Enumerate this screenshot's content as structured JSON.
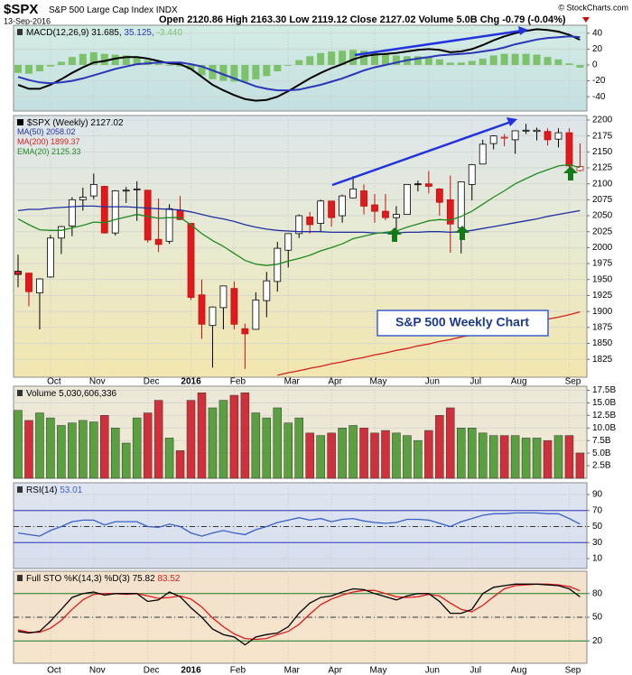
{
  "header": {
    "symbol": "$SPX",
    "name": "S&P 500 Large Cap Index",
    "exchange": "INDX",
    "date": "13-Sep-2016",
    "source": "© StockCharts.com",
    "quote": [
      {
        "label": "Open",
        "value": "2120.86"
      },
      {
        "label": "High",
        "value": "2163.30"
      },
      {
        "label": "Low",
        "value": "2119.12"
      },
      {
        "label": "Close",
        "value": "2127.02"
      },
      {
        "label": "Volume",
        "value": "5.0B"
      },
      {
        "label": "Chg",
        "value": "-0.79 (-0.04%)"
      }
    ]
  },
  "chart_data": [
    {
      "type": "line",
      "title": "MACD(12,26,9)",
      "ylim": [
        -58,
        50
      ],
      "yticks": [
        40,
        20,
        0,
        -20,
        -40
      ],
      "grid": true,
      "series": [
        {
          "type": "bar",
          "legend_value": "-3.440",
          "color": "#7cc26a",
          "values": [
            -10,
            -11,
            -8,
            -2,
            4,
            10,
            14,
            16,
            14,
            13,
            12,
            9,
            6,
            2,
            -1,
            -2,
            -6,
            -13,
            -18,
            -20,
            -21,
            -21,
            -18,
            -14,
            -8,
            -1,
            6,
            11,
            15,
            17,
            18,
            19,
            18,
            16,
            14,
            12,
            11,
            11,
            10,
            7,
            3,
            3,
            5,
            8,
            12,
            14,
            14,
            14,
            13,
            10,
            7,
            2,
            -3.44
          ]
        },
        {
          "type": "line",
          "legend_value": "31.685,",
          "color": "#000000",
          "values": [
            -25,
            -30,
            -30,
            -25,
            -18,
            -10,
            -3,
            3,
            5,
            8,
            10,
            10,
            8,
            5,
            2,
            1,
            -5,
            -15,
            -25,
            -32,
            -38,
            -43,
            -45,
            -44,
            -40,
            -33,
            -25,
            -17,
            -10,
            -4,
            1,
            7,
            11,
            13,
            14,
            15,
            17,
            19,
            20,
            19,
            16,
            17,
            20,
            25,
            31,
            36,
            40,
            43,
            45,
            44,
            42,
            38,
            31.685
          ]
        },
        {
          "type": "line",
          "legend_value": "35.125,",
          "color": "#2a35b8",
          "values": [
            -15,
            -19,
            -22,
            -23,
            -22,
            -20,
            -17,
            -13,
            -9,
            -5,
            -2,
            1,
            2,
            3,
            3,
            3,
            1,
            -2,
            -7,
            -12,
            -17,
            -22,
            -27,
            -30,
            -32,
            -32,
            -31,
            -28,
            -25,
            -21,
            -17,
            -12,
            -7,
            -3,
            0,
            3,
            6,
            8,
            10,
            12,
            13,
            14,
            15,
            17,
            19,
            22,
            26,
            29,
            32,
            34,
            35,
            36,
            35.125
          ]
        }
      ]
    },
    {
      "type": "candlestick",
      "title": "$SPX (Weekly)",
      "last": "2127.02",
      "annotation": "S&P 500 Weekly Chart",
      "categories": [
        null,
        null,
        null,
        "Oct",
        null,
        null,
        null,
        "Nov",
        null,
        null,
        null,
        null,
        "Dec",
        null,
        null,
        null,
        "2016",
        null,
        null,
        null,
        "Feb",
        null,
        null,
        null,
        null,
        "Mar",
        null,
        null,
        null,
        "Apr",
        null,
        null,
        null,
        "May",
        null,
        null,
        null,
        null,
        "Jun",
        null,
        null,
        null,
        "Jul",
        null,
        null,
        null,
        "Aug",
        null,
        null,
        null,
        null,
        "Sep",
        null
      ],
      "open": [
        1963,
        1960,
        1929,
        1954,
        2015,
        2034,
        2075,
        2081,
        2096,
        2023,
        2090,
        2091,
        2090,
        2013,
        2010,
        2058,
        2038,
        1926,
        1878,
        1906,
        1936,
        1873,
        1872,
        1917,
        1947,
        1996,
        2022,
        2048,
        2038,
        2073,
        2050,
        2078,
        2089,
        2067,
        2057,
        2047,
        2052,
        2100,
        2100,
        2092,
        2075,
        2031,
        2099,
        2131,
        2163,
        2173,
        2169,
        2183,
        2182,
        2182,
        2170,
        2180,
        2120.86
      ],
      "high": [
        1989,
        1961,
        1952,
        2020,
        2034,
        2079,
        2094,
        2116,
        2097,
        2090,
        2095,
        2104,
        2090,
        2077,
        2068,
        2081,
        2038,
        1950,
        1908,
        1940,
        1947,
        1881,
        1930,
        1962,
        2009,
        2022,
        2052,
        2056,
        2075,
        2073,
        2083,
        2112,
        2099,
        2084,
        2084,
        2065,
        2099,
        2105,
        2120,
        2093,
        2113,
        2103,
        2131,
        2169,
        2176,
        2178,
        2183,
        2194,
        2188,
        2187,
        2187,
        2187,
        2163.3
      ],
      "low": [
        1938,
        1908,
        1872,
        1953,
        1990,
        2018,
        2058,
        2076,
        2022,
        2019,
        2070,
        2042,
        2008,
        1993,
        2006,
        2043,
        1918,
        1857,
        1812,
        1872,
        1872,
        1810,
        1872,
        1891,
        1931,
        1969,
        2015,
        2022,
        2024,
        2033,
        2039,
        2077,
        2052,
        2039,
        2043,
        2025,
        2052,
        2088,
        2085,
        2050,
        1992,
        1991,
        2074,
        2131,
        2154,
        2159,
        2147,
        2178,
        2168,
        2160,
        2157,
        2119,
        2119.12
      ],
      "close": [
        1958,
        1931,
        1951,
        2015,
        2033,
        2075,
        2079,
        2099,
        2023,
        2089,
        2090,
        2092,
        2012,
        2005,
        2061,
        2044,
        1922,
        1880,
        1907,
        1940,
        1880,
        1865,
        1918,
        1948,
        1999,
        2022,
        2050,
        2036,
        2073,
        2047,
        2081,
        2092,
        2065,
        2057,
        2047,
        2052,
        2099,
        2099,
        2096,
        2071,
        2037,
        2103,
        2130,
        2162,
        2175,
        2173,
        2183,
        2184,
        2184,
        2169,
        2180,
        2128,
        2127.02
      ],
      "up_color": "#ffffff",
      "down_color": "#e0191c",
      "ylim": [
        1797,
        2207
      ],
      "yticks": [
        1825,
        1850,
        1875,
        1900,
        1925,
        1950,
        1975,
        2000,
        2025,
        2050,
        2075,
        2100,
        2125,
        2150,
        2175,
        2200
      ],
      "grid": true,
      "series": [
        {
          "type": "line",
          "name": "MA(50)",
          "legend_value": "2058.02",
          "color": "#1f2fa0",
          "values": [
            2058,
            2060,
            2060,
            2062,
            2063,
            2064,
            2065,
            2065,
            2064,
            2064,
            2064,
            2063,
            2062,
            2061,
            2060,
            2059,
            2056,
            2052,
            2048,
            2045,
            2041,
            2036,
            2032,
            2029,
            2027,
            2026,
            2025,
            2025,
            2025,
            2024,
            2024,
            2024,
            2024,
            2023,
            2023,
            2023,
            2024,
            2024,
            2025,
            2025,
            2024,
            2025,
            2027,
            2030,
            2033,
            2036,
            2039,
            2042,
            2045,
            2049,
            2052,
            2055,
            2058.02
          ]
        },
        {
          "type": "line",
          "name": "MA(200)",
          "legend_value": "1899.37",
          "color": "#d42020",
          "values": [
            null,
            null,
            null,
            null,
            null,
            null,
            null,
            null,
            null,
            null,
            null,
            null,
            null,
            null,
            null,
            null,
            null,
            null,
            null,
            null,
            null,
            null,
            null,
            null,
            1800,
            1804,
            1807,
            1811,
            1814,
            1818,
            1821,
            1825,
            1828,
            1832,
            1835,
            1839,
            1842,
            1846,
            1849,
            1853,
            1856,
            1860,
            1863,
            1867,
            1870,
            1874,
            1877,
            1881,
            1884,
            1888,
            1891,
            1895,
            1899.37
          ]
        },
        {
          "type": "line",
          "name": "EMA(20)",
          "legend_value": "2125.33",
          "color": "#1e8a1e",
          "values": [
            2045,
            2036,
            2028,
            2027,
            2027,
            2031,
            2035,
            2040,
            2039,
            2044,
            2048,
            2052,
            2049,
            2046,
            2047,
            2047,
            2036,
            2022,
            2011,
            2002,
            1991,
            1980,
            1974,
            1972,
            1974,
            1979,
            1983,
            1988,
            1995,
            2000,
            2006,
            2014,
            2018,
            2022,
            2024,
            2026,
            2032,
            2037,
            2042,
            2044,
            2043,
            2049,
            2057,
            2068,
            2079,
            2089,
            2100,
            2108,
            2116,
            2122,
            2128,
            2130,
            2125.33
          ]
        }
      ]
    },
    {
      "type": "bar",
      "title": "Volume",
      "legend_value": "5,030,606,336",
      "up_color": "#5aa040",
      "down_color": "#d0303c",
      "values": [
        13.5,
        11.5,
        13,
        12,
        10.5,
        11,
        11.5,
        11.2,
        12.5,
        10,
        7,
        12,
        13,
        15.5,
        8,
        5.5,
        15.5,
        17,
        14,
        15.5,
        16.5,
        17,
        13,
        12,
        14,
        11,
        12,
        9,
        8.5,
        9,
        10,
        10.5,
        10,
        9,
        9.5,
        9,
        8.5,
        7.5,
        9.5,
        12.5,
        14,
        10,
        10,
        9,
        8.5,
        8.5,
        8.5,
        8,
        8,
        7.5,
        8.5,
        8.5,
        5.03
      ],
      "ylim": [
        0,
        18.3
      ],
      "yticks": [
        {
          "value": 2.5,
          "label": "2.5B"
        },
        {
          "value": 5,
          "label": "5.0B"
        },
        {
          "value": 7.5,
          "label": "7.5B"
        },
        {
          "value": 10,
          "label": "10.0B"
        },
        {
          "value": 12.5,
          "label": "12.5B"
        },
        {
          "value": 15,
          "label": "15.0B"
        },
        {
          "value": 17.5,
          "label": "17.5B"
        }
      ],
      "grid": true
    },
    {
      "type": "line",
      "title": "RSI(14)",
      "ylim": [
        -2.4,
        104.6
      ],
      "yticks": [
        90,
        70,
        50,
        30,
        10
      ],
      "grid": true,
      "ref_lines": [
        {
          "value": 70,
          "color": "#2a35b8",
          "style": "solid"
        },
        {
          "value": 50,
          "color": "#000000",
          "style": "dashed"
        },
        {
          "value": 30,
          "color": "#2a35b8",
          "style": "solid"
        }
      ],
      "series": [
        {
          "type": "line",
          "legend_value": "53.01",
          "color": "#3a5fc8",
          "values": [
            42,
            40,
            38,
            45,
            50,
            56,
            58,
            58,
            52,
            56,
            56,
            56,
            50,
            49,
            53,
            50,
            42,
            38,
            42,
            45,
            42,
            40,
            46,
            50,
            55,
            58,
            61,
            58,
            60,
            56,
            59,
            60,
            57,
            55,
            54,
            55,
            59,
            59,
            58,
            54,
            50,
            56,
            60,
            64,
            66,
            66,
            67,
            67,
            67,
            66,
            66,
            60,
            53.01
          ]
        }
      ]
    },
    {
      "type": "line",
      "title": "Full STO %K(14,3) %D(3)",
      "ylim": [
        -8.3,
        108.3
      ],
      "yticks": [
        80,
        50,
        20
      ],
      "grid": true,
      "categories": [
        null,
        null,
        null,
        "Oct",
        null,
        null,
        null,
        "Nov",
        null,
        null,
        null,
        null,
        "Dec",
        null,
        null,
        null,
        "2016",
        null,
        null,
        null,
        "Feb",
        null,
        null,
        null,
        null,
        "Mar",
        null,
        null,
        null,
        "Apr",
        null,
        null,
        null,
        "May",
        null,
        null,
        null,
        null,
        "Jun",
        null,
        null,
        null,
        "Jul",
        null,
        null,
        null,
        "Aug",
        null,
        null,
        null,
        null,
        "Sep",
        null
      ],
      "ref_lines": [
        {
          "value": 80,
          "color": "#1e7a1e",
          "style": "solid"
        },
        {
          "value": 50,
          "color": "#000000",
          "style": "dashed"
        },
        {
          "value": 20,
          "color": "#1e7a1e",
          "style": "solid"
        }
      ],
      "series": [
        {
          "type": "line",
          "legend_value": "83.52",
          "color": "#e0191c",
          "values": [
            34,
            31,
            31,
            36,
            46,
            60,
            72,
            79,
            80,
            80,
            79,
            80,
            77,
            74,
            75,
            77,
            73,
            63,
            49,
            38,
            29,
            23,
            22,
            23,
            28,
            32,
            41,
            54,
            66,
            73,
            78,
            82,
            84,
            84,
            80,
            76,
            75,
            76,
            79,
            77,
            68,
            60,
            57,
            65,
            76,
            86,
            90,
            91,
            92,
            92,
            91,
            89,
            83.52
          ]
        },
        {
          "type": "line",
          "legend_value": "75.82",
          "color": "#000000",
          "values": [
            32,
            30,
            32,
            45,
            60,
            75,
            80,
            82,
            78,
            80,
            80,
            80,
            70,
            72,
            82,
            76,
            62,
            50,
            35,
            28,
            25,
            15,
            25,
            28,
            30,
            38,
            55,
            68,
            75,
            77,
            82,
            86,
            85,
            80,
            76,
            72,
            77,
            80,
            80,
            70,
            55,
            55,
            60,
            80,
            88,
            90,
            92,
            92,
            92,
            91,
            90,
            86,
            75.82
          ]
        }
      ]
    }
  ]
}
